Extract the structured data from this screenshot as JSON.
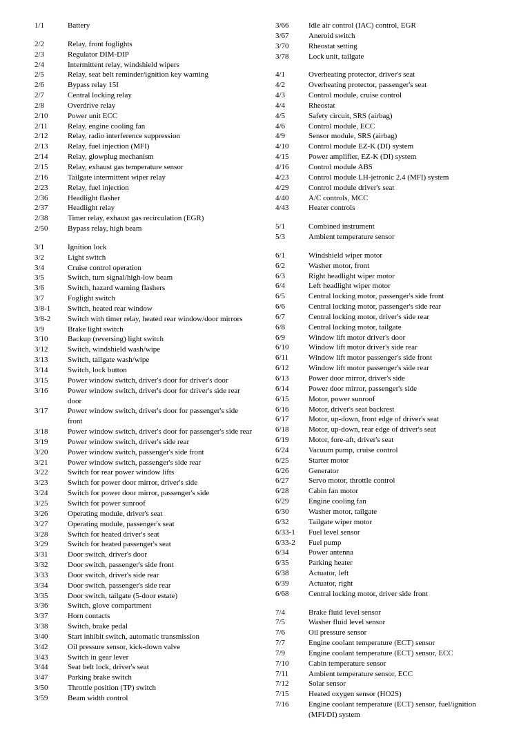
{
  "font_family": "Times New Roman, serif",
  "font_size_pt": 9,
  "columns": {
    "left": [
      {
        "code": "1/1",
        "desc": "Battery"
      },
      {
        "gap": true
      },
      {
        "code": "2/2",
        "desc": "Relay, front foglights"
      },
      {
        "code": "2/3",
        "desc": "Regulator DIM-DIP"
      },
      {
        "code": "2/4",
        "desc": "Intermittent relay, windshield wipers"
      },
      {
        "code": "2/5",
        "desc": "Relay, seat belt reminder/ignition key warning"
      },
      {
        "code": "2/6",
        "desc": "Bypass relay 15I"
      },
      {
        "code": "2/7",
        "desc": "Central locking relay"
      },
      {
        "code": "2/8",
        "desc": "Overdrive relay"
      },
      {
        "code": "2/10",
        "desc": "Power unit ECC"
      },
      {
        "code": "2/11",
        "desc": "Relay, engine cooling fan"
      },
      {
        "code": "2/12",
        "desc": "Relay, radio interference suppression"
      },
      {
        "code": "2/13",
        "desc": "Relay, fuel injection (MFI)"
      },
      {
        "code": "2/14",
        "desc": "Relay, glowplug mechanism"
      },
      {
        "code": "2/15",
        "desc": "Relay, exhaust gas temperature sensor"
      },
      {
        "code": "2/16",
        "desc": "Tailgate intermittent wiper relay"
      },
      {
        "code": "2/23",
        "desc": "Relay, fuel injection"
      },
      {
        "code": "2/36",
        "desc": "Headlight flasher"
      },
      {
        "code": "2/37",
        "desc": "Headlight relay"
      },
      {
        "code": "2/38",
        "desc": "Timer relay, exhaust gas recirculation (EGR)"
      },
      {
        "code": "2/50",
        "desc": "Bypass relay, high beam"
      },
      {
        "gap": true
      },
      {
        "code": "3/1",
        "desc": "Ignition lock"
      },
      {
        "code": "3/2",
        "desc": "Light switch"
      },
      {
        "code": "3/4",
        "desc": "Cruise control operation"
      },
      {
        "code": "3/5",
        "desc": "Switch, turn signal/high-low beam"
      },
      {
        "code": "3/6",
        "desc": "Switch, hazard warning flashers"
      },
      {
        "code": "3/7",
        "desc": "Foglight switch"
      },
      {
        "code": "3/8-1",
        "desc": "Switch, heated rear window"
      },
      {
        "code": "3/8-2",
        "desc": "Switch with timer relay, heated rear window/door mirrors"
      },
      {
        "code": "3/9",
        "desc": "Brake light switch"
      },
      {
        "code": "3/10",
        "desc": "Backup (reversing) light switch"
      },
      {
        "code": "3/12",
        "desc": "Switch, windshield wash/wipe"
      },
      {
        "code": "3/13",
        "desc": "Switch, tailgate wash/wipe"
      },
      {
        "code": "3/14",
        "desc": "Switch, lock button"
      },
      {
        "code": "3/15",
        "desc": "Power window switch, driver's door for driver's door"
      },
      {
        "code": "3/16",
        "desc": "Power window switch, driver's door for driver's side rear door"
      },
      {
        "code": "3/17",
        "desc": "Power window switch, driver's door for passenger's side front"
      },
      {
        "code": "3/18",
        "desc": "Power window switch, driver's door for passenger's side rear"
      },
      {
        "code": "3/19",
        "desc": "Power window switch, driver's side rear"
      },
      {
        "code": "3/20",
        "desc": "Power window switch, passenger's side front"
      },
      {
        "code": "3/21",
        "desc": "Power window switch, passenger's side rear"
      },
      {
        "code": "3/22",
        "desc": "Switch for rear power window lifts"
      },
      {
        "code": "3/23",
        "desc": "Switch for power door mirror, driver's side"
      },
      {
        "code": "3/24",
        "desc": "Switch for power door mirror, passenger's side"
      },
      {
        "code": "3/25",
        "desc": "Switch for power sunroof"
      },
      {
        "code": "3/26",
        "desc": "Operating module, driver's seat"
      },
      {
        "code": "3/27",
        "desc": "Operating module, passenger's seat"
      },
      {
        "code": "3/28",
        "desc": "Switch for heated driver's seat"
      },
      {
        "code": "3/29",
        "desc": "Switch for heated passenger's seat"
      },
      {
        "code": "3/31",
        "desc": "Door switch, driver's door"
      },
      {
        "code": "3/32",
        "desc": "Door switch, passenger's side front"
      },
      {
        "code": "3/33",
        "desc": "Door switch, driver's side rear"
      },
      {
        "code": "3/34",
        "desc": "Door switch, passenger's side rear"
      },
      {
        "code": "3/35",
        "desc": "Door switch, tailgate (5-door estate)"
      },
      {
        "code": "3/36",
        "desc": "Switch, glove compartment"
      },
      {
        "code": "3/37",
        "desc": "Horn contacts"
      },
      {
        "code": "3/38",
        "desc": "Switch, brake pedal"
      },
      {
        "code": "3/40",
        "desc": "Start inhibit switch, automatic transmission"
      },
      {
        "code": "3/42",
        "desc": "Oil pressure sensor, kick-down valve"
      },
      {
        "code": "3/43",
        "desc": "Switch in gear lever"
      },
      {
        "code": "3/44",
        "desc": "Seat belt lock, driver's seat"
      },
      {
        "code": "3/47",
        "desc": "Parking brake switch"
      },
      {
        "code": "3/50",
        "desc": "Throttle position (TP) switch"
      },
      {
        "code": "3/59",
        "desc": "Beam width control"
      }
    ],
    "right": [
      {
        "code": "3/66",
        "desc": "Idle air control (IAC) control, EGR"
      },
      {
        "code": "3/67",
        "desc": "Aneroid switch"
      },
      {
        "code": "3/70",
        "desc": "Rheostat setting"
      },
      {
        "code": "3/78",
        "desc": "Lock unit, tailgate"
      },
      {
        "gap": true
      },
      {
        "code": "4/1",
        "desc": "Overheating protector, driver's seat"
      },
      {
        "code": "4/2",
        "desc": "Overheating protector, passenger's seat"
      },
      {
        "code": "4/3",
        "desc": "Control module, cruise control"
      },
      {
        "code": "4/4",
        "desc": "Rheostat"
      },
      {
        "code": "4/5",
        "desc": "Safety circuit, SRS (airbag)"
      },
      {
        "code": "4/6",
        "desc": "Control module, ECC"
      },
      {
        "code": "4/9",
        "desc": "Sensor module, SRS (airbag)"
      },
      {
        "code": "4/10",
        "desc": "Control module EZ-K (DI) system"
      },
      {
        "code": "4/15",
        "desc": "Power amplifier, EZ-K (DI) system"
      },
      {
        "code": "4/16",
        "desc": "Control module ABS"
      },
      {
        "code": "4/23",
        "desc": "Control module LH-jetronic 2.4 (MFI) system"
      },
      {
        "code": "4/29",
        "desc": "Control module driver's seat"
      },
      {
        "code": "4/40",
        "desc": "A/C controls, MCC"
      },
      {
        "code": "4/43",
        "desc": "Heater controls"
      },
      {
        "gap": true
      },
      {
        "code": "5/1",
        "desc": "Combined instrument"
      },
      {
        "code": "5/3",
        "desc": "Ambient temperature sensor"
      },
      {
        "gap": true
      },
      {
        "code": "6/1",
        "desc": "Windshield wiper motor"
      },
      {
        "code": "6/2",
        "desc": "Washer motor, front"
      },
      {
        "code": "6/3",
        "desc": "Right headlight wiper motor"
      },
      {
        "code": "6/4",
        "desc": "Left headlight wiper motor"
      },
      {
        "code": "6/5",
        "desc": "Central locking motor, passenger's side front"
      },
      {
        "code": "6/6",
        "desc": "Central locking motor, passenger's side rear"
      },
      {
        "code": "6/7",
        "desc": "Central locking motor, driver's side rear"
      },
      {
        "code": "6/8",
        "desc": "Central locking motor, tailgate"
      },
      {
        "code": "6/9",
        "desc": "Window lift motor driver's door"
      },
      {
        "code": "6/10",
        "desc": "Window lift motor driver's side rear"
      },
      {
        "code": "6/11",
        "desc": "Window lift motor passenger's side front"
      },
      {
        "code": "6/12",
        "desc": "Window lift motor passenger's side rear"
      },
      {
        "code": "6/13",
        "desc": "Power door mirror, driver's side"
      },
      {
        "code": "6/14",
        "desc": "Power door mirror, passenger's side"
      },
      {
        "code": "6/15",
        "desc": "Motor, power sunroof"
      },
      {
        "code": "6/16",
        "desc": "Motor, driver's seat backrest"
      },
      {
        "code": "6/17",
        "desc": "Motor, up-down, front edge of driver's seat"
      },
      {
        "code": "6/18",
        "desc": "Motor, up-down, rear edge of driver's seat"
      },
      {
        "code": "6/19",
        "desc": "Motor, fore-aft, driver's seat"
      },
      {
        "code": "6/24",
        "desc": "Vacuum pump, cruise control"
      },
      {
        "code": "6/25",
        "desc": "Starter motor"
      },
      {
        "code": "6/26",
        "desc": "Generator"
      },
      {
        "code": "6/27",
        "desc": "Servo motor, throttle control"
      },
      {
        "code": "6/28",
        "desc": "Cabin fan motor"
      },
      {
        "code": "6/29",
        "desc": "Engine cooling fan"
      },
      {
        "code": "6/30",
        "desc": "Washer motor, tailgate"
      },
      {
        "code": "6/32",
        "desc": "Tailgate wiper motor"
      },
      {
        "code": "6/33-1",
        "desc": "Fuel level sensor"
      },
      {
        "code": "6/33-2",
        "desc": "Fuel pump"
      },
      {
        "code": "6/34",
        "desc": "Power antenna"
      },
      {
        "code": "6/35",
        "desc": "Parking heater"
      },
      {
        "code": "6/38",
        "desc": "Actuator, left"
      },
      {
        "code": "6/39",
        "desc": "Actuator, right"
      },
      {
        "code": "6/68",
        "desc": "Central locking motor, driver side front"
      },
      {
        "gap": true
      },
      {
        "code": "7/4",
        "desc": "Brake fluid level sensor"
      },
      {
        "code": "7/5",
        "desc": "Washer fluid level sensor"
      },
      {
        "code": "7/6",
        "desc": "Oil pressure sensor"
      },
      {
        "code": "7/7",
        "desc": "Engine coolant temperature (ECT) sensor"
      },
      {
        "code": "7/9",
        "desc": "Engine coolant temperature (ECT) sensor, ECC"
      },
      {
        "code": "7/10",
        "desc": "Cabin temperature sensor"
      },
      {
        "code": "7/11",
        "desc": "Ambient temperature sensor, ECC"
      },
      {
        "code": "7/12",
        "desc": "Solar sensor"
      },
      {
        "code": "7/15",
        "desc": "Heated oxygen sensor (HO2S)"
      },
      {
        "code": "7/16",
        "desc": "Engine coolant temperature (ECT) sensor, fuel/ignition (MFI/DI) system"
      }
    ]
  }
}
